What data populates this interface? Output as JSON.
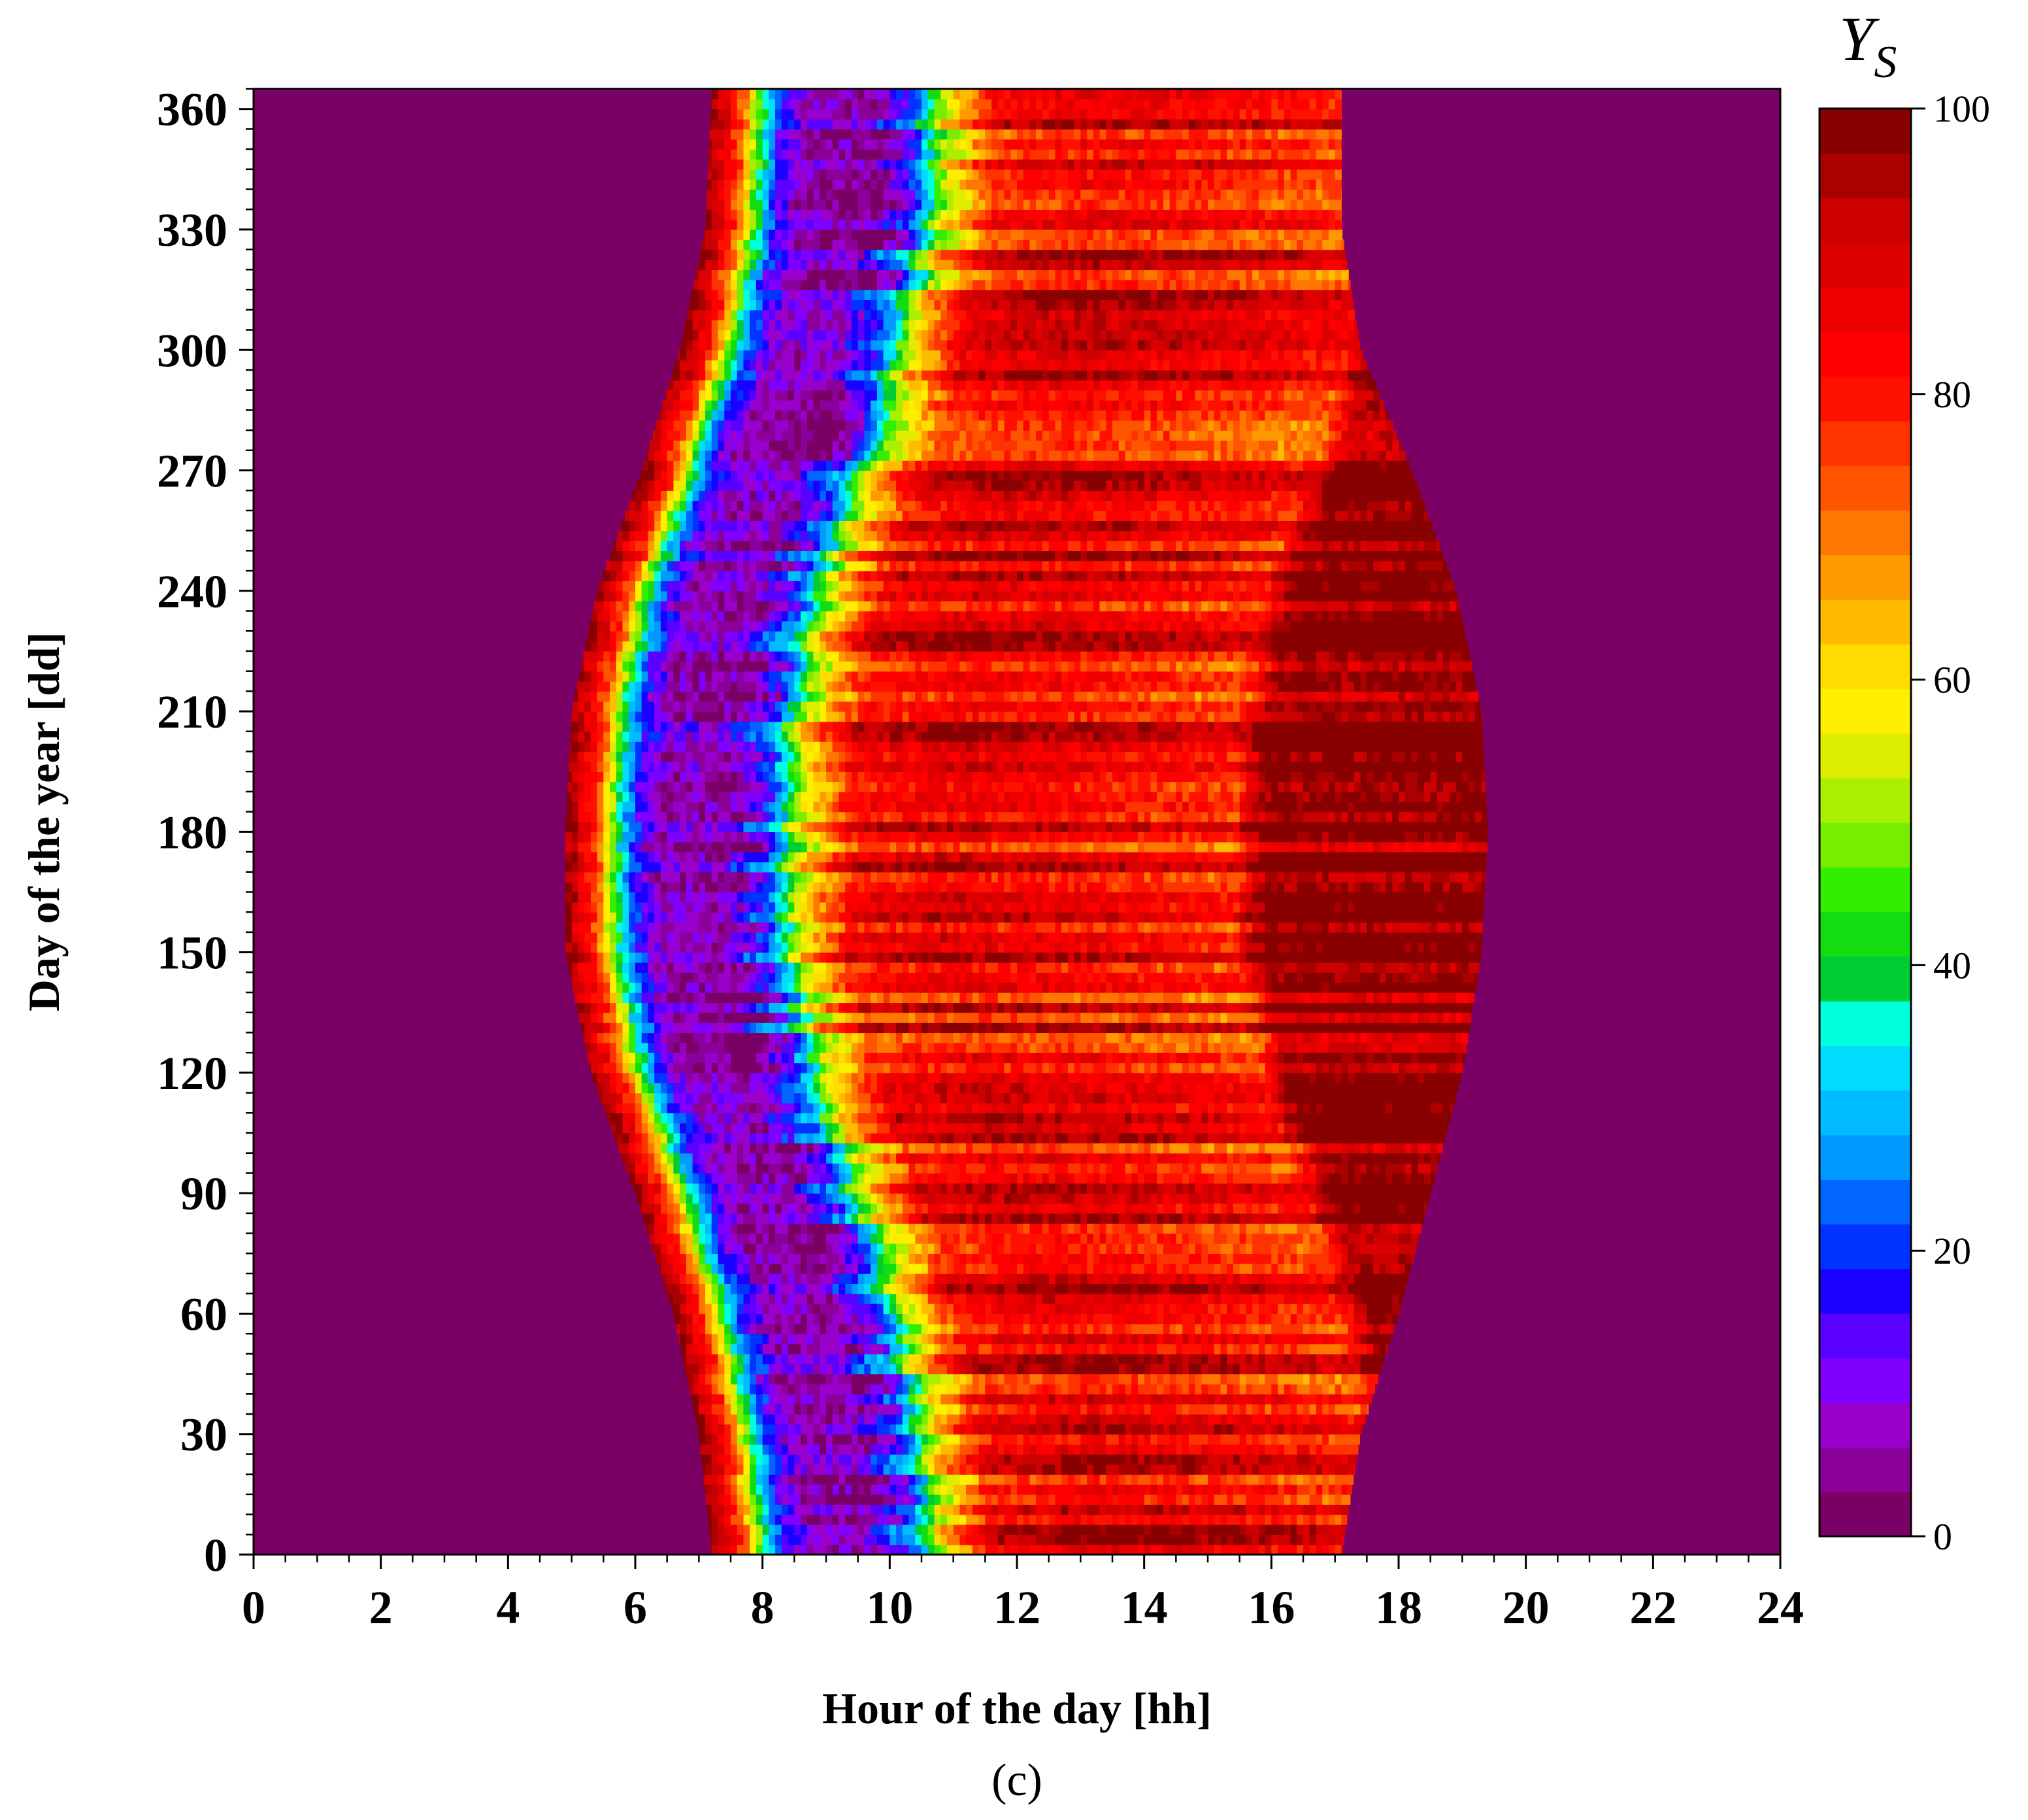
{
  "chart_data": {
    "type": "heatmap",
    "xlabel": "Hour of the day [hh]",
    "ylabel": "Day of the year [dd]",
    "xlim": [
      0,
      24
    ],
    "ylim": [
      0,
      365
    ],
    "x_ticks": [
      "0",
      "2",
      "4",
      "6",
      "8",
      "10",
      "12",
      "14",
      "16",
      "18",
      "20",
      "22",
      "24"
    ],
    "y_ticks": [
      "0",
      "30",
      "60",
      "90",
      "120",
      "150",
      "180",
      "210",
      "240",
      "270",
      "300",
      "330",
      "360"
    ],
    "colorbar": {
      "title_main": "Y",
      "title_sub": "S",
      "range": [
        0,
        100
      ],
      "ticks": [
        "0",
        "20",
        "40",
        "60",
        "80",
        "100"
      ],
      "levels": [
        "#7a0066",
        "#8a0099",
        "#9a00cc",
        "#7f00ff",
        "#5a00ff",
        "#1a00ff",
        "#0033ff",
        "#0066ff",
        "#0099ff",
        "#00bbff",
        "#00ddff",
        "#00ffdd",
        "#00cc33",
        "#11dd11",
        "#33ee00",
        "#77ee00",
        "#aaee00",
        "#ddee00",
        "#ffee00",
        "#ffdd00",
        "#ffbb00",
        "#ff9900",
        "#ff7700",
        "#ff5500",
        "#ff3300",
        "#ff1100",
        "#ff0000",
        "#ee0000",
        "#dd0000",
        "#cc0000",
        "#aa0000",
        "#880000"
      ]
    },
    "background_value_color": "#7a0066",
    "daylight_window": [
      {
        "day": 0,
        "sunrise": 7.2,
        "sunset": 17.1
      },
      {
        "day": 30,
        "sunrise": 7.0,
        "sunset": 17.4
      },
      {
        "day": 60,
        "sunrise": 6.6,
        "sunset": 18.0
      },
      {
        "day": 90,
        "sunrise": 6.0,
        "sunset": 18.5
      },
      {
        "day": 120,
        "sunrise": 5.3,
        "sunset": 19.0
      },
      {
        "day": 150,
        "sunrise": 4.9,
        "sunset": 19.3
      },
      {
        "day": 180,
        "sunrise": 4.9,
        "sunset": 19.4
      },
      {
        "day": 210,
        "sunrise": 5.0,
        "sunset": 19.3
      },
      {
        "day": 240,
        "sunrise": 5.4,
        "sunset": 18.9
      },
      {
        "day": 270,
        "sunrise": 6.1,
        "sunset": 18.2
      },
      {
        "day": 300,
        "sunrise": 6.7,
        "sunset": 17.4
      },
      {
        "day": 330,
        "sunrise": 7.1,
        "sunset": 17.1
      },
      {
        "day": 365,
        "sunrise": 7.2,
        "sunset": 17.1
      }
    ],
    "hour_profile": [
      {
        "offset": 0.0,
        "value": 99
      },
      {
        "offset": 0.5,
        "value": 75
      },
      {
        "offset": 0.8,
        "value": 42
      },
      {
        "offset": 1.1,
        "value": 18
      },
      {
        "offset": 1.5,
        "value": 7
      },
      {
        "offset": 2.6,
        "value": 6
      },
      {
        "offset": 3.2,
        "value": 20
      },
      {
        "offset": 3.7,
        "value": 55
      },
      {
        "offset": 4.5,
        "value": 82
      },
      {
        "offset": 6.0,
        "value": 87
      },
      {
        "offset": 8.0,
        "value": 84
      },
      {
        "offset": 10.5,
        "value": 78
      },
      {
        "offset": 11.0,
        "value": 99
      },
      {
        "offset": 14.5,
        "value": 99
      }
    ],
    "panel_label": "(c)"
  }
}
